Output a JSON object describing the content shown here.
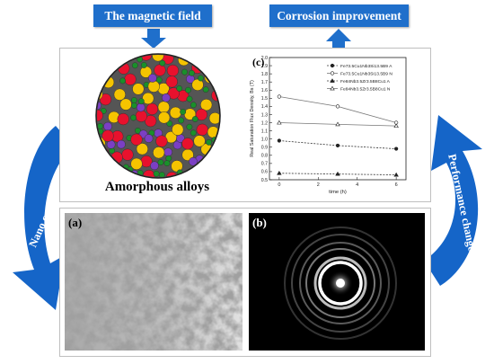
{
  "labels": {
    "magnetic_field": "The magnetic field",
    "corrosion": "Corrosion improvement",
    "amorphous": "Amorphous alloys",
    "nano": "Nano crystallization",
    "performance": "Performance change",
    "panel_a": "(a)",
    "panel_b": "(b)",
    "panel_c": "(c)"
  },
  "colors": {
    "tag_blue": "#1f6fcb",
    "arrow_blue": "#1565c8",
    "atom_red": "#e8112d",
    "atom_yellow": "#f5c400",
    "atom_purple": "#7b3fc4",
    "atom_green": "#1a8f2a"
  },
  "chart_data": {
    "type": "line",
    "xlabel": "time (h)",
    "ylabel": "Real Saturation Flux Density, Bs (T)",
    "x": [
      0,
      3,
      6
    ],
    "xlim": [
      -0.5,
      6.5
    ],
    "ylim": [
      0.5,
      2.0
    ],
    "xticks": [
      0,
      2,
      4,
      6
    ],
    "yticks": [
      0.5,
      0.6,
      0.7,
      0.8,
      0.9,
      1.0,
      1.1,
      1.2,
      1.3,
      1.4,
      1.5,
      1.6,
      1.7,
      1.8,
      1.9,
      2.0
    ],
    "legend_position": "top-right",
    "series": [
      {
        "name": "Fe73.5Cu1Nb3Si13.5B9 A",
        "values": [
          0.98,
          0.92,
          0.88
        ],
        "style": "dashed",
        "marker": "filled-circle"
      },
      {
        "name": "Fe73.5Cu1Nb3Si13.5B9 N",
        "values": [
          1.52,
          1.4,
          1.2
        ],
        "style": "solid",
        "marker": "open-circle"
      },
      {
        "name": "Fe84Nb3.5Zr3.5B8Cu1 A",
        "values": [
          0.58,
          0.57,
          0.56
        ],
        "style": "dashed",
        "marker": "filled-triangle"
      },
      {
        "name": "Fe84Nb3.5Zr3.5B8Cu1 N",
        "values": [
          1.2,
          1.18,
          1.16
        ],
        "style": "solid",
        "marker": "open-triangle"
      }
    ]
  }
}
